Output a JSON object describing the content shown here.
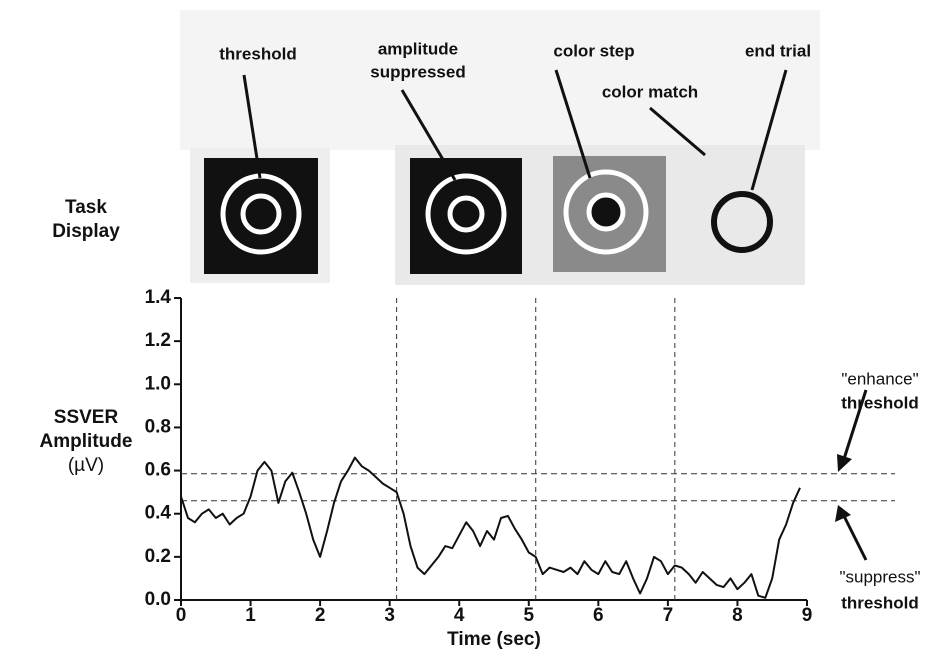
{
  "chart_data": {
    "type": "line",
    "task_display": {
      "title_lines": [
        "Task",
        "Display"
      ],
      "labels": [
        [
          "threshold"
        ],
        [
          "amplitude",
          "suppressed"
        ],
        [
          "color step"
        ],
        [
          "color match"
        ],
        [
          "end trial"
        ]
      ]
    },
    "ylabel_lines": [
      "SSVER",
      "Amplitude",
      "(µV)"
    ],
    "xlabel": "Time (sec)",
    "x": [
      0,
      0.1,
      0.2,
      0.3,
      0.4,
      0.5,
      0.6,
      0.7,
      0.8,
      0.9,
      1.0,
      1.1,
      1.2,
      1.3,
      1.4,
      1.5,
      1.6,
      1.7,
      1.8,
      1.9,
      2.0,
      2.1,
      2.2,
      2.3,
      2.4,
      2.5,
      2.6,
      2.7,
      2.8,
      2.9,
      3.0,
      3.1,
      3.2,
      3.3,
      3.4,
      3.5,
      3.6,
      3.7,
      3.8,
      3.9,
      4.0,
      4.1,
      4.2,
      4.3,
      4.4,
      4.5,
      4.6,
      4.7,
      4.8,
      4.9,
      5.0,
      5.1,
      5.2,
      5.3,
      5.4,
      5.5,
      5.6,
      5.7,
      5.8,
      5.9,
      6.0,
      6.1,
      6.2,
      6.3,
      6.4,
      6.5,
      6.6,
      6.7,
      6.8,
      6.9,
      7.0,
      7.1,
      7.2,
      7.3,
      7.4,
      7.5,
      7.6,
      7.7,
      7.8,
      7.9,
      8.0,
      8.1,
      8.2,
      8.3,
      8.4,
      8.5,
      8.6,
      8.7,
      8.8,
      8.9
    ],
    "series": [
      {
        "color": "#111111",
        "values": [
          0.48,
          0.38,
          0.36,
          0.4,
          0.42,
          0.38,
          0.4,
          0.35,
          0.38,
          0.4,
          0.48,
          0.6,
          0.64,
          0.6,
          0.45,
          0.55,
          0.59,
          0.5,
          0.4,
          0.28,
          0.2,
          0.32,
          0.45,
          0.55,
          0.6,
          0.66,
          0.62,
          0.6,
          0.57,
          0.54,
          0.52,
          0.5,
          0.4,
          0.25,
          0.15,
          0.12,
          0.16,
          0.2,
          0.25,
          0.24,
          0.3,
          0.36,
          0.32,
          0.25,
          0.32,
          0.28,
          0.38,
          0.39,
          0.33,
          0.28,
          0.22,
          0.2,
          0.12,
          0.15,
          0.14,
          0.13,
          0.15,
          0.12,
          0.18,
          0.14,
          0.12,
          0.18,
          0.13,
          0.12,
          0.18,
          0.1,
          0.03,
          0.1,
          0.2,
          0.18,
          0.12,
          0.16,
          0.15,
          0.12,
          0.08,
          0.13,
          0.1,
          0.07,
          0.06,
          0.1,
          0.05,
          0.08,
          0.12,
          0.02,
          0.01,
          0.1,
          0.28,
          0.35,
          0.45,
          0.52
        ]
      }
    ],
    "events": [
      3.1,
      5.1,
      7.1
    ],
    "thresholds": [
      {
        "lines": [
          "\"enhance\"",
          "threshold"
        ],
        "value": 0.585
      },
      {
        "lines": [
          "\"suppress\"",
          "threshold"
        ],
        "value": 0.46
      }
    ],
    "xlim": [
      0,
      9
    ],
    "ylim": [
      0,
      1.4
    ],
    "xticks": [
      0,
      1,
      2,
      3,
      4,
      5,
      6,
      7,
      8,
      9
    ],
    "yticks": [
      {
        "value": 0,
        "label": "0.0"
      },
      0.2,
      0.4,
      0.6,
      0.8,
      {
        "value": 1,
        "label": "1.0"
      },
      1.2,
      1.4
    ]
  }
}
